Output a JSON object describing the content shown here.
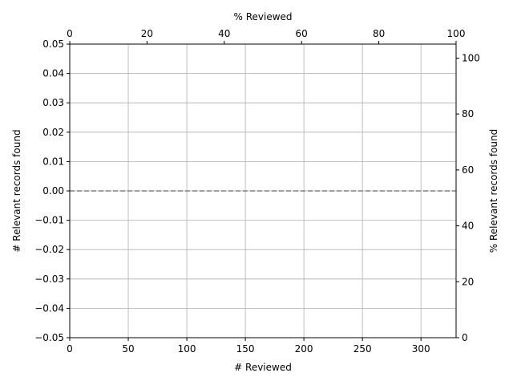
{
  "chart_data": {
    "type": "line",
    "title": "",
    "xlabel": "# Reviewed",
    "ylabel": "# Relevant records found",
    "x2label": "% Reviewed",
    "y2label": "% Relevant records found",
    "xlim": [
      0,
      330
    ],
    "ylim": [
      -0.05,
      0.05
    ],
    "x2lim": [
      0,
      100
    ],
    "y2lim": [
      0,
      105
    ],
    "x_ticks": [
      0,
      50,
      100,
      150,
      200,
      250,
      300
    ],
    "y_ticks": [
      -0.05,
      -0.04,
      -0.03,
      -0.02,
      -0.01,
      0.0,
      0.01,
      0.02,
      0.03,
      0.04,
      0.05
    ],
    "x2_ticks": [
      0,
      20,
      40,
      60,
      80,
      100
    ],
    "y2_ticks": [
      0,
      20,
      40,
      60,
      80,
      100
    ],
    "x_tick_labels": [
      "0",
      "50",
      "100",
      "150",
      "200",
      "250",
      "300"
    ],
    "y_tick_labels": [
      "−0.05",
      "−0.04",
      "−0.03",
      "−0.02",
      "−0.01",
      "0.00",
      "0.01",
      "0.02",
      "0.03",
      "0.04",
      "0.05"
    ],
    "x2_tick_labels": [
      "0",
      "20",
      "40",
      "60",
      "80",
      "100"
    ],
    "y2_tick_labels": [
      "0",
      "20",
      "40",
      "60",
      "80",
      "100"
    ],
    "grid": true,
    "series": [
      {
        "style": "dashed",
        "color": "#808080",
        "x": [
          0,
          330
        ],
        "y": [
          0,
          0
        ]
      }
    ],
    "colors": {
      "grid": "#b0b0b0",
      "axes": "#000000",
      "line": "#808080"
    }
  }
}
